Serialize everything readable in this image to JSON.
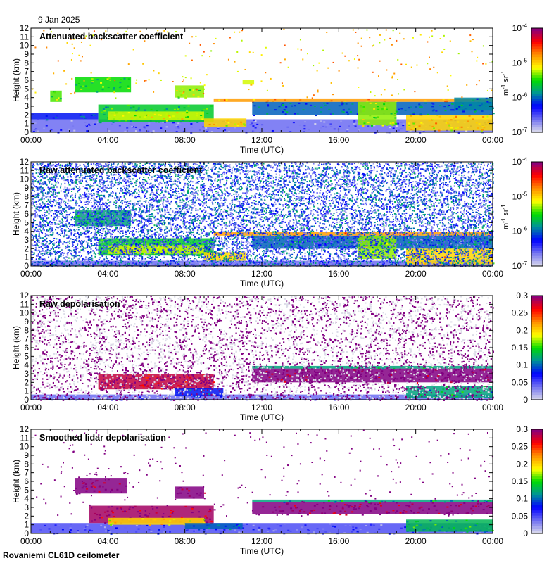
{
  "date": "9 Jan 2025",
  "footer": "Rovaniemi CL61D ceilometer",
  "chart_data": [
    {
      "type": "heatmap",
      "title": "Attenuated backscatter coefficient",
      "xlabel": "Time (UTC)",
      "ylabel": "Height (km)",
      "xlim": [
        0,
        24
      ],
      "ylim": [
        0,
        12
      ],
      "xticks": [
        "00:00",
        "04:00",
        "08:00",
        "12:00",
        "16:00",
        "20:00",
        "00:00"
      ],
      "yticks": [
        "0",
        "1",
        "2",
        "3",
        "4",
        "5",
        "6",
        "7",
        "8",
        "9",
        "10",
        "11",
        "12"
      ],
      "colorbar": {
        "scale": "log",
        "range": [
          -7,
          -4
        ],
        "ticks": [
          "10",
          "10",
          "10",
          "10"
        ],
        "exponents": [
          "-7",
          "-6",
          "-5",
          "-4"
        ],
        "label": "m-1 sr-1",
        "label_parts": [
          "m",
          "-1",
          " sr",
          "-1"
        ]
      },
      "noise": {
        "density": 0.02,
        "vmin": -5.3,
        "vmax": -4.6,
        "hmin": 4,
        "hmax": 12
      },
      "regions": [
        {
          "t": [
            0,
            24
          ],
          "h": [
            0,
            1.5
          ],
          "v": -6.6
        },
        {
          "t": [
            0,
            3.5
          ],
          "h": [
            1.5,
            2.2
          ],
          "v": -6.2
        },
        {
          "t": [
            3.5,
            9.5
          ],
          "h": [
            1.2,
            3.2
          ],
          "v": -5.6
        },
        {
          "t": [
            4,
            9
          ],
          "h": [
            1.4,
            2.4
          ],
          "v": -5.2
        },
        {
          "t": [
            9,
            11.2
          ],
          "h": [
            0.6,
            1.6
          ],
          "v": -5.0
        },
        {
          "t": [
            2.3,
            5.2
          ],
          "h": [
            4.6,
            6.4
          ],
          "v": -5.5
        },
        {
          "t": [
            1,
            1.6
          ],
          "h": [
            3.5,
            4.8
          ],
          "v": -5.4
        },
        {
          "t": [
            7.5,
            9
          ],
          "h": [
            4,
            5.4
          ],
          "v": -5.3
        },
        {
          "t": [
            11,
            11.6
          ],
          "h": [
            5.5,
            6
          ],
          "v": -5.2
        },
        {
          "t": [
            9.5,
            24
          ],
          "h": [
            3.5,
            3.9
          ],
          "v": -4.8
        },
        {
          "t": [
            11.5,
            24
          ],
          "h": [
            2,
            3.5
          ],
          "v": -6.0
        },
        {
          "t": [
            17,
            19
          ],
          "h": [
            0.8,
            3.5
          ],
          "v": -5.3
        },
        {
          "t": [
            19.5,
            24
          ],
          "h": [
            0.2,
            2
          ],
          "v": -5.0
        },
        {
          "t": [
            22,
            24
          ],
          "h": [
            2.5,
            4
          ],
          "v": -5.9
        }
      ]
    },
    {
      "type": "heatmap",
      "title": "Raw attenuated backscatter coefficient",
      "xlabel": "Time (UTC)",
      "ylabel": "Height (km)",
      "xlim": [
        0,
        24
      ],
      "ylim": [
        0,
        12
      ],
      "xticks": [
        "00:00",
        "04:00",
        "08:00",
        "12:00",
        "16:00",
        "20:00",
        "00:00"
      ],
      "yticks": [
        "0",
        "1",
        "2",
        "3",
        "4",
        "5",
        "6",
        "7",
        "8",
        "9",
        "10",
        "11",
        "12"
      ],
      "colorbar": {
        "scale": "log",
        "range": [
          -7,
          -4
        ],
        "ticks": [
          "10",
          "10",
          "10",
          "10"
        ],
        "exponents": [
          "-7",
          "-6",
          "-5",
          "-4"
        ],
        "label": "m-1 sr-1",
        "label_parts": [
          "m",
          "-1",
          " sr",
          "-1"
        ]
      },
      "noise": {
        "density": 0.7,
        "vmin": -6.8,
        "vmax": -5.7,
        "hmin": 0,
        "hmax": 12
      },
      "regions": [
        {
          "t": [
            0,
            24
          ],
          "h": [
            0,
            0.6
          ],
          "v": -6.6
        },
        {
          "t": [
            3.5,
            9.5
          ],
          "h": [
            1.2,
            3.2
          ],
          "v": -5.6
        },
        {
          "t": [
            4,
            9
          ],
          "h": [
            1.4,
            2.4
          ],
          "v": -5.2
        },
        {
          "t": [
            9,
            11.2
          ],
          "h": [
            0.6,
            1.6
          ],
          "v": -5.0
        },
        {
          "t": [
            2.3,
            5.2
          ],
          "h": [
            4.6,
            6.4
          ],
          "v": -5.8
        },
        {
          "t": [
            9.5,
            24
          ],
          "h": [
            3.5,
            3.9
          ],
          "v": -4.8
        },
        {
          "t": [
            11.5,
            24
          ],
          "h": [
            2,
            3.5
          ],
          "v": -6.0
        },
        {
          "t": [
            17,
            19
          ],
          "h": [
            0.8,
            3.5
          ],
          "v": -5.3
        },
        {
          "t": [
            19.5,
            24
          ],
          "h": [
            0.2,
            2
          ],
          "v": -5.0
        }
      ]
    },
    {
      "type": "heatmap",
      "title": "Raw depolarisation",
      "xlabel": "Time (UTC)",
      "ylabel": "Height (km)",
      "xlim": [
        0,
        24
      ],
      "ylim": [
        0,
        12
      ],
      "xticks": [
        "00:00",
        "04:00",
        "08:00",
        "12:00",
        "16:00",
        "20:00",
        "00:00"
      ],
      "yticks": [
        "0",
        "1",
        "2",
        "3",
        "4",
        "5",
        "6",
        "7",
        "8",
        "9",
        "10",
        "11",
        "12"
      ],
      "colorbar": {
        "scale": "linear",
        "range": [
          0,
          0.3
        ],
        "ticks": [
          "0",
          "0.05",
          "0.1",
          "0.15",
          "0.2",
          "0.25",
          "0.3"
        ]
      },
      "noise": {
        "density": 0.75,
        "vmin": 0.3,
        "vmax": 0.3,
        "hmin": 0,
        "hmax": 12,
        "mix_zero": 0.45
      },
      "regions": [
        {
          "t": [
            0,
            24
          ],
          "h": [
            0,
            0.6
          ],
          "v": 0.04
        },
        {
          "t": [
            3.5,
            9.5
          ],
          "h": [
            1.2,
            3
          ],
          "v": 0.28
        },
        {
          "t": [
            7.5,
            10
          ],
          "h": [
            0.4,
            1.3
          ],
          "v": 0.08
        },
        {
          "t": [
            11.5,
            24
          ],
          "h": [
            2,
            3.6
          ],
          "v": 0.3
        },
        {
          "t": [
            11.5,
            24
          ],
          "h": [
            3.6,
            3.9
          ],
          "v": 0.12
        },
        {
          "t": [
            19.5,
            24
          ],
          "h": [
            0.2,
            1.6
          ],
          "v": 0.12
        }
      ]
    },
    {
      "type": "heatmap",
      "title": "Smoothed lidar depolarisation",
      "xlabel": "Time (UTC)",
      "ylabel": "Height (km)",
      "xlim": [
        0,
        24
      ],
      "ylim": [
        0,
        12
      ],
      "xticks": [
        "00:00",
        "04:00",
        "08:00",
        "12:00",
        "16:00",
        "20:00",
        "00:00"
      ],
      "yticks": [
        "0",
        "1",
        "2",
        "3",
        "4",
        "5",
        "6",
        "7",
        "8",
        "9",
        "10",
        "11",
        "12"
      ],
      "colorbar": {
        "scale": "linear",
        "range": [
          0,
          0.3
        ],
        "ticks": [
          "0",
          "0.05",
          "0.1",
          "0.15",
          "0.2",
          "0.25",
          "0.3"
        ]
      },
      "noise": {
        "density": 0.02,
        "vmin": 0.3,
        "vmax": 0.3,
        "hmin": 2,
        "hmax": 12
      },
      "regions": [
        {
          "t": [
            0,
            24
          ],
          "h": [
            0,
            1.2
          ],
          "v": 0.05
        },
        {
          "t": [
            3,
            9.5
          ],
          "h": [
            1.2,
            3.2
          ],
          "v": 0.29
        },
        {
          "t": [
            4,
            9
          ],
          "h": [
            1,
            1.8
          ],
          "v": 0.2
        },
        {
          "t": [
            2.3,
            5
          ],
          "h": [
            4.6,
            6.4
          ],
          "v": 0.3
        },
        {
          "t": [
            7.5,
            9
          ],
          "h": [
            4,
            5.4
          ],
          "v": 0.3
        },
        {
          "t": [
            8,
            11
          ],
          "h": [
            0.5,
            1.2
          ],
          "v": 0.1
        },
        {
          "t": [
            11.5,
            24
          ],
          "h": [
            2.2,
            3.6
          ],
          "v": 0.3
        },
        {
          "t": [
            11.5,
            24
          ],
          "h": [
            3.6,
            3.9
          ],
          "v": 0.12
        },
        {
          "t": [
            19.5,
            24
          ],
          "h": [
            0.2,
            1.6
          ],
          "v": 0.13
        }
      ]
    }
  ]
}
